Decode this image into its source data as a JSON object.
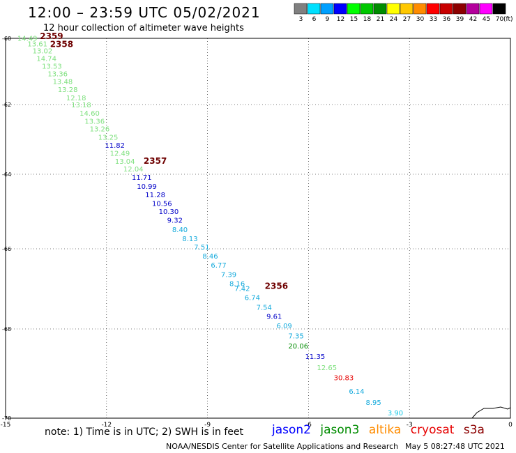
{
  "title": "12:00 – 23:59 UTC 05/02/2021",
  "subtitle": "12 hour collection of altimeter wave heights",
  "colorbar": {
    "unit": "(ft)",
    "bins": [
      {
        "label": "3",
        "color": "#808080"
      },
      {
        "label": "6",
        "color": "#00e0ff"
      },
      {
        "label": "9",
        "color": "#00a0ff"
      },
      {
        "label": "12",
        "color": "#0000ff"
      },
      {
        "label": "15",
        "color": "#00ff00"
      },
      {
        "label": "18",
        "color": "#00c800"
      },
      {
        "label": "21",
        "color": "#008c00"
      },
      {
        "label": "24",
        "color": "#ffff00"
      },
      {
        "label": "27",
        "color": "#ffc800"
      },
      {
        "label": "30",
        "color": "#ff8c00"
      },
      {
        "label": "33",
        "color": "#ff0000"
      },
      {
        "label": "36",
        "color": "#c80000"
      },
      {
        "label": "39",
        "color": "#8c0000"
      },
      {
        "label": "42",
        "color": "#b4009c"
      },
      {
        "label": "45",
        "color": "#ff00ff"
      },
      {
        "label": "70",
        "color": "#000000"
      }
    ]
  },
  "axes": {
    "lat_ticks": [
      "-60",
      "-62",
      "-64",
      "-66",
      "-68",
      "-70"
    ],
    "lon_ticks": [
      "-15",
      "-12",
      "-9",
      "-6",
      "-3",
      "0"
    ]
  },
  "pass_times": [
    {
      "label": "2359",
      "lon": -13.98,
      "lat": -60.02
    },
    {
      "label": "2358",
      "lon": -13.68,
      "lat": -60.26
    },
    {
      "label": "2357",
      "lon": -10.9,
      "lat": -63.7
    },
    {
      "label": "2356",
      "lon": -7.3,
      "lat": -67.0
    }
  ],
  "pass_color": "#6e0000",
  "observations": [
    {
      "v": "14.49",
      "lon": -14.65,
      "lat": -60.07,
      "c": "#7ee07e"
    },
    {
      "v": "13.61",
      "lon": -14.35,
      "lat": -60.24,
      "c": "#7ee07e"
    },
    {
      "v": "13.02",
      "lon": -14.2,
      "lat": -60.45,
      "c": "#7ee07e"
    },
    {
      "v": "14.74",
      "lon": -14.08,
      "lat": -60.68,
      "c": "#7ee07e"
    },
    {
      "v": "13.53",
      "lon": -13.92,
      "lat": -60.92,
      "c": "#7ee07e"
    },
    {
      "v": "13.36",
      "lon": -13.75,
      "lat": -61.15,
      "c": "#7ee07e"
    },
    {
      "v": "13.48",
      "lon": -13.6,
      "lat": -61.38,
      "c": "#7ee07e"
    },
    {
      "v": "13.28",
      "lon": -13.45,
      "lat": -61.62,
      "c": "#7ee07e"
    },
    {
      "v": "12.18",
      "lon": -13.2,
      "lat": -61.87,
      "c": "#7ee07e"
    },
    {
      "v": "13.18",
      "lon": -13.05,
      "lat": -62.08,
      "c": "#7ee07e"
    },
    {
      "v": "14.60",
      "lon": -12.8,
      "lat": -62.32,
      "c": "#7ee07e"
    },
    {
      "v": "13.36",
      "lon": -12.65,
      "lat": -62.55,
      "c": "#7ee07e"
    },
    {
      "v": "13.26",
      "lon": -12.5,
      "lat": -62.77,
      "c": "#7ee07e"
    },
    {
      "v": "13.25",
      "lon": -12.25,
      "lat": -63.01,
      "c": "#7ee07e"
    },
    {
      "v": "11.82",
      "lon": -12.05,
      "lat": -63.24,
      "c": "#0000c8"
    },
    {
      "v": "12.49",
      "lon": -11.9,
      "lat": -63.47,
      "c": "#7ee07e"
    },
    {
      "v": "13.04",
      "lon": -11.75,
      "lat": -63.7,
      "c": "#7ee07e"
    },
    {
      "v": "12.04",
      "lon": -11.5,
      "lat": -63.92,
      "c": "#7ee07e"
    },
    {
      "v": "11.71",
      "lon": -11.25,
      "lat": -64.15,
      "c": "#0000c8"
    },
    {
      "v": "10.99",
      "lon": -11.1,
      "lat": -64.39,
      "c": "#0000c8"
    },
    {
      "v": "11.28",
      "lon": -10.85,
      "lat": -64.62,
      "c": "#0000c8"
    },
    {
      "v": "10.56",
      "lon": -10.65,
      "lat": -64.85,
      "c": "#0000c8"
    },
    {
      "v": "10.30",
      "lon": -10.45,
      "lat": -65.07,
      "c": "#0000c8"
    },
    {
      "v": "9.32",
      "lon": -10.2,
      "lat": -65.3,
      "c": "#0000c8"
    },
    {
      "v": "8.40",
      "lon": -10.05,
      "lat": -65.55,
      "c": "#14aadc"
    },
    {
      "v": "8.13",
      "lon": -9.75,
      "lat": -65.79,
      "c": "#14aadc"
    },
    {
      "v": "7.51",
      "lon": -9.4,
      "lat": -66.02,
      "c": "#14aadc"
    },
    {
      "v": "8.46",
      "lon": -9.15,
      "lat": -66.24,
      "c": "#14aadc"
    },
    {
      "v": "6.77",
      "lon": -8.9,
      "lat": -66.47,
      "c": "#14aadc"
    },
    {
      "v": "7.39",
      "lon": -8.6,
      "lat": -66.7,
      "c": "#14aadc"
    },
    {
      "v": "8.16",
      "lon": -8.35,
      "lat": -66.93,
      "c": "#14aadc"
    },
    {
      "v": "7.42",
      "lon": -8.2,
      "lat": -67.05,
      "c": "#14aadc"
    },
    {
      "v": "6.74",
      "lon": -7.9,
      "lat": -67.28,
      "c": "#14aadc"
    },
    {
      "v": "7.54",
      "lon": -7.55,
      "lat": -67.52,
      "c": "#14aadc"
    },
    {
      "v": "9.61",
      "lon": -7.25,
      "lat": -67.75,
      "c": "#0000c8"
    },
    {
      "v": "6.09",
      "lon": -6.95,
      "lat": -67.98,
      "c": "#14aadc"
    },
    {
      "v": "7.35",
      "lon": -6.6,
      "lat": -68.21,
      "c": "#14aadc"
    },
    {
      "v": "20.06",
      "lon": -6.6,
      "lat": -68.44,
      "c": "#008c00"
    },
    {
      "v": "11.35",
      "lon": -6.1,
      "lat": -68.67,
      "c": "#0000c8"
    },
    {
      "v": "12.65",
      "lon": -5.75,
      "lat": -68.92,
      "c": "#7ee07e"
    },
    {
      "v": "30.83",
      "lon": -5.25,
      "lat": -69.15,
      "c": "#e60000"
    },
    {
      "v": "6.14",
      "lon": -4.8,
      "lat": -69.45,
      "c": "#14aadc"
    },
    {
      "v": "8.95",
      "lon": -4.3,
      "lat": -69.7,
      "c": "#14aadc"
    },
    {
      "v": "3.90",
      "lon": -3.65,
      "lat": -69.94,
      "c": "#14c8e6"
    }
  ],
  "footer": {
    "note": "note:  1) Time is in UTC;  2) SWH is in feet",
    "missions": [
      {
        "name": "jason2",
        "color": "#0000ff"
      },
      {
        "name": "jason3",
        "color": "#008c00"
      },
      {
        "name": "altika",
        "color": "#ff8c00"
      },
      {
        "name": "cryosat",
        "color": "#e60000"
      },
      {
        "name": "s3a",
        "color": "#8c0000"
      }
    ],
    "credit": "NOAA/NESDIS Center for Satellite Applications and Research",
    "generated": "May  5 08:27:48 UTC 2021"
  }
}
